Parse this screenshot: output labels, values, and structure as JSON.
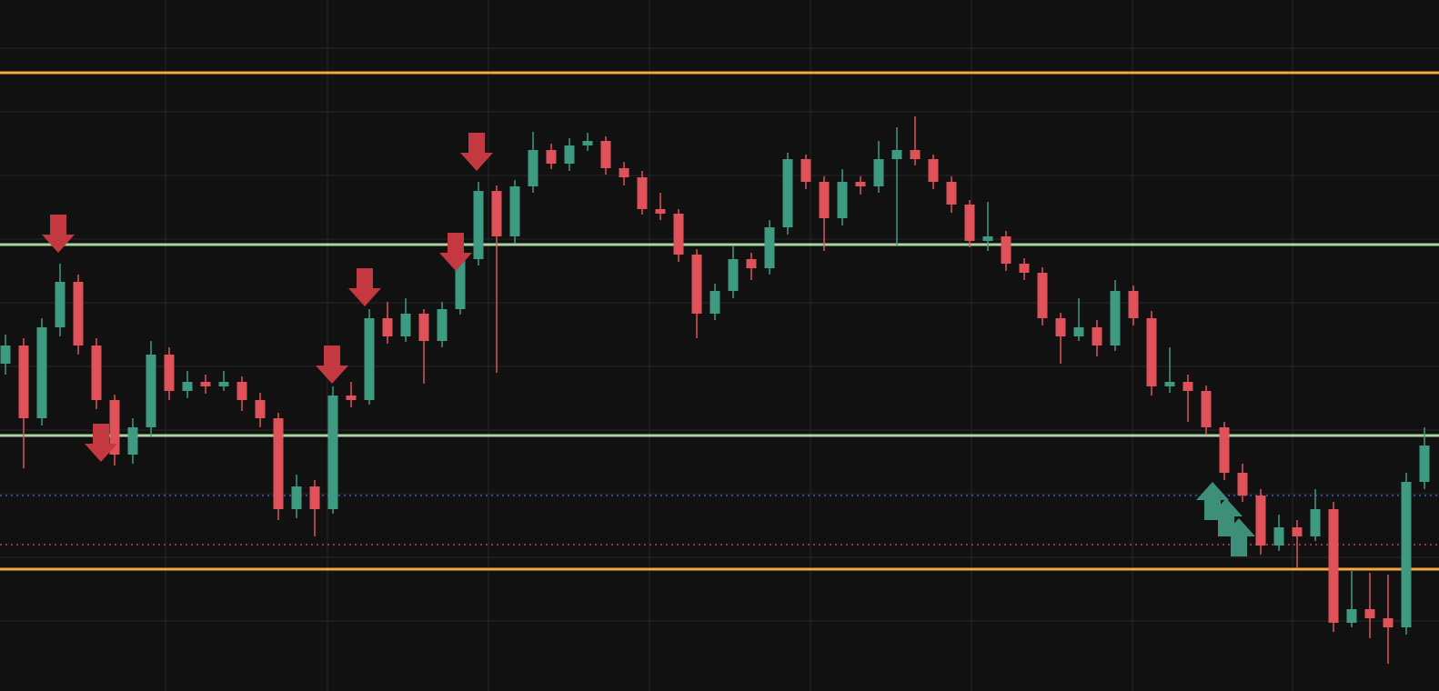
{
  "chart_data": {
    "type": "candlestick",
    "background": "#111112",
    "grid": true,
    "grid_color": "#262628",
    "xlim": [
      0,
      1582
    ],
    "ylim": [
      0,
      760
    ],
    "xticks": [
      182,
      360,
      537,
      714,
      891,
      1068,
      1245,
      1421
    ],
    "yticks": [
      707,
      637,
      567,
      497,
      427,
      357,
      287,
      217,
      147,
      77
    ],
    "up_color": "#3f9a82",
    "down_color": "#e0525a",
    "x": [
      6,
      26,
      46,
      66,
      86,
      106,
      126,
      146,
      166,
      186,
      206,
      226,
      246,
      266,
      286,
      306,
      326,
      346,
      366,
      386,
      406,
      426,
      446,
      466,
      486,
      506,
      526,
      546,
      566,
      586,
      606,
      626,
      646,
      666,
      686,
      706,
      726,
      746,
      766,
      786,
      806,
      826,
      846,
      866,
      886,
      906,
      926,
      946,
      966,
      986,
      1006,
      1026,
      1046,
      1066,
      1086,
      1106,
      1126,
      1146,
      1166,
      1186,
      1206,
      1226,
      1246,
      1266,
      1286,
      1306,
      1326,
      1346,
      1366,
      1386,
      1406,
      1426,
      1446,
      1466,
      1486,
      1506,
      1526,
      1546,
      1566
    ],
    "open": [
      360,
      380,
      300,
      400,
      450,
      380,
      320,
      260,
      290,
      370,
      330,
      340,
      335,
      340,
      320,
      300,
      200,
      225,
      200,
      325,
      320,
      410,
      390,
      415,
      385,
      420,
      475,
      550,
      500,
      555,
      595,
      580,
      600,
      605,
      575,
      565,
      530,
      525,
      480,
      415,
      440,
      475,
      465,
      510,
      585,
      560,
      520,
      560,
      555,
      585,
      595,
      585,
      560,
      535,
      495,
      500,
      470,
      460,
      410,
      390,
      400,
      380,
      440,
      410,
      335,
      340,
      330,
      290,
      240,
      215,
      160,
      180,
      170,
      200,
      75,
      90,
      80,
      70,
      230
    ],
    "high": [
      392,
      388,
      410,
      470,
      458,
      388,
      326,
      300,
      385,
      378,
      352,
      348,
      352,
      346,
      328,
      306,
      238,
      232,
      335,
      340,
      420,
      428,
      432,
      420,
      428,
      482,
      560,
      556,
      562,
      615,
      602,
      608,
      614,
      610,
      582,
      572,
      548,
      530,
      486,
      448,
      490,
      482,
      518,
      592,
      590,
      566,
      574,
      566,
      605,
      620,
      632,
      590,
      566,
      540,
      538,
      506,
      476,
      466,
      416,
      432,
      408,
      452,
      446,
      418,
      378,
      348,
      336,
      296,
      250,
      222,
      194,
      188,
      222,
      208,
      132,
      130,
      128,
      240,
      290
    ],
    "low": [
      348,
      245,
      292,
      390,
      370,
      310,
      248,
      250,
      280,
      320,
      322,
      327,
      330,
      308,
      290,
      188,
      190,
      170,
      195,
      312,
      315,
      382,
      384,
      338,
      378,
      414,
      468,
      350,
      492,
      548,
      574,
      572,
      594,
      568,
      556,
      524,
      518,
      472,
      388,
      408,
      432,
      452,
      458,
      502,
      552,
      484,
      512,
      546,
      548,
      490,
      578,
      552,
      526,
      488,
      484,
      462,
      452,
      402,
      360,
      385,
      368,
      374,
      402,
      325,
      328,
      296,
      282,
      232,
      208,
      150,
      154,
      135,
      165,
      65,
      70,
      58,
      30,
      62,
      222
    ],
    "close": [
      380,
      300,
      400,
      450,
      380,
      320,
      260,
      290,
      370,
      330,
      340,
      335,
      340,
      320,
      300,
      200,
      225,
      200,
      325,
      320,
      410,
      390,
      415,
      385,
      420,
      475,
      550,
      500,
      555,
      595,
      580,
      600,
      605,
      575,
      565,
      530,
      525,
      480,
      415,
      440,
      475,
      465,
      510,
      585,
      560,
      520,
      560,
      555,
      585,
      595,
      585,
      560,
      535,
      495,
      500,
      470,
      460,
      410,
      390,
      400,
      380,
      440,
      410,
      335,
      340,
      330,
      290,
      240,
      215,
      160,
      180,
      170,
      200,
      75,
      90,
      80,
      70,
      230,
      270
    ],
    "levels": [
      {
        "value": 680,
        "color": "#f5a742",
        "style": "solid"
      },
      {
        "value": 491,
        "color": "#a8d5a0",
        "style": "solid"
      },
      {
        "value": 281,
        "color": "#a8d5a0",
        "style": "solid"
      },
      {
        "value": 215,
        "color": "#4a6fe0",
        "style": "dotted"
      },
      {
        "value": 161,
        "color": "#e0525a",
        "style": "dotted"
      },
      {
        "value": 134,
        "color": "#f5a742",
        "style": "solid"
      }
    ],
    "sell_signals": {
      "color": "#c4383f",
      "x": [
        64,
        111,
        365,
        401,
        501,
        524
      ],
      "y": [
        482,
        252,
        338,
        423,
        462,
        572
      ]
    },
    "buy_signals": {
      "color": "#3d8f7a",
      "x": [
        1333,
        1348,
        1362
      ],
      "y": [
        230,
        212,
        190
      ]
    }
  }
}
